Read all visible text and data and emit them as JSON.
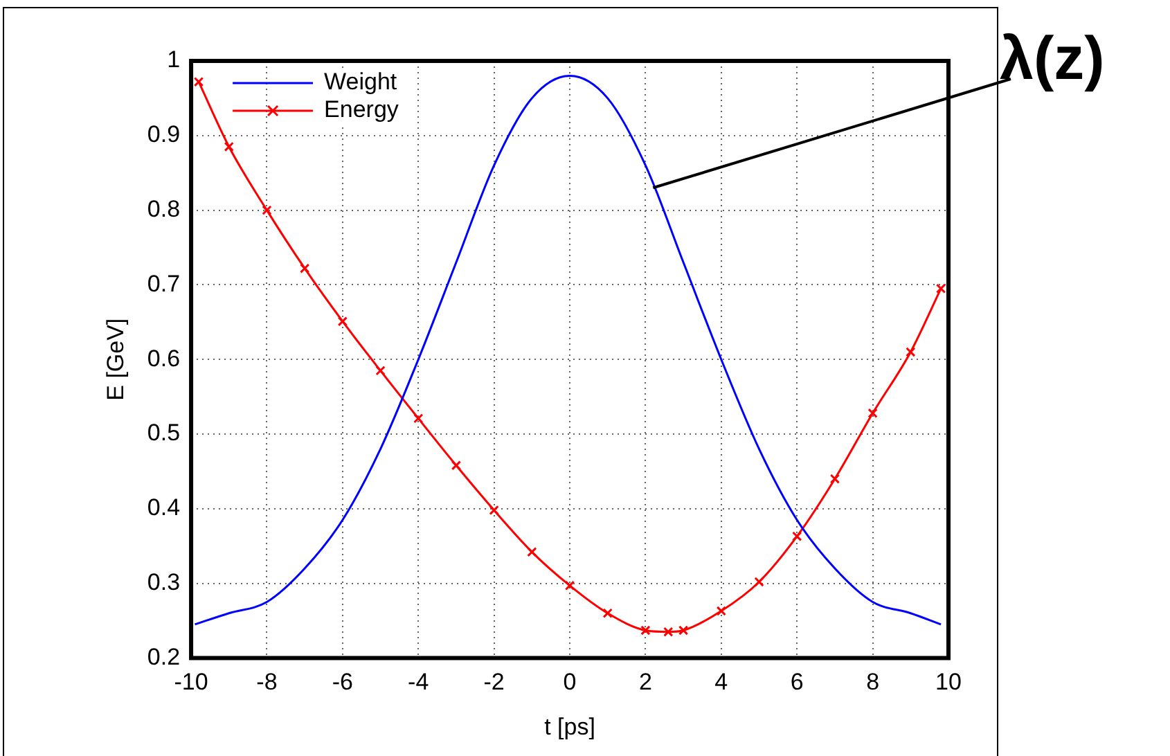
{
  "chart_data": {
    "type": "line",
    "xlabel": "t [ps]",
    "ylabel": "E [GeV]",
    "xlim": [
      -10,
      10
    ],
    "xticks": [
      -10,
      -8,
      -6,
      -4,
      -2,
      0,
      2,
      4,
      6,
      8,
      10
    ],
    "ylim": [
      0.2,
      1
    ],
    "yticks": [
      0.2,
      0.3,
      0.4,
      0.5,
      0.6,
      0.7,
      0.8,
      0.9,
      1
    ],
    "grid": true,
    "legend": "top left",
    "line_style": "solid",
    "series": [
      {
        "name": "Weight",
        "color": "#0000ff",
        "marker": "none",
        "x": [
          -9.9,
          -9,
          -8,
          -7,
          -6,
          -5,
          -4,
          -3,
          -2,
          -1,
          0,
          1,
          2,
          3,
          4,
          5,
          6,
          7,
          8,
          9,
          9.8
        ],
        "values": [
          0.245,
          0.26,
          0.275,
          0.32,
          0.385,
          0.48,
          0.6,
          0.73,
          0.86,
          0.95,
          0.98,
          0.95,
          0.86,
          0.73,
          0.6,
          0.48,
          0.385,
          0.32,
          0.275,
          0.26,
          0.245
        ]
      },
      {
        "name": "Energy",
        "color": "#ff0000",
        "marker": "cross",
        "x": [
          -9.8,
          -9,
          -8,
          -7,
          -6,
          -5,
          -4,
          -3,
          -2,
          -1,
          0,
          1,
          2,
          2.6,
          3,
          4,
          5,
          6,
          7,
          8,
          9,
          9.8
        ],
        "values": [
          0.972,
          0.885,
          0.8,
          0.722,
          0.651,
          0.585,
          0.521,
          0.458,
          0.398,
          0.342,
          0.297,
          0.26,
          0.237,
          0.235,
          0.237,
          0.263,
          0.302,
          0.363,
          0.44,
          0.528,
          0.61,
          0.695
        ]
      }
    ],
    "annotations": [
      {
        "text": "λ(z)",
        "x": 2.2,
        "y": 0.83
      }
    ]
  }
}
